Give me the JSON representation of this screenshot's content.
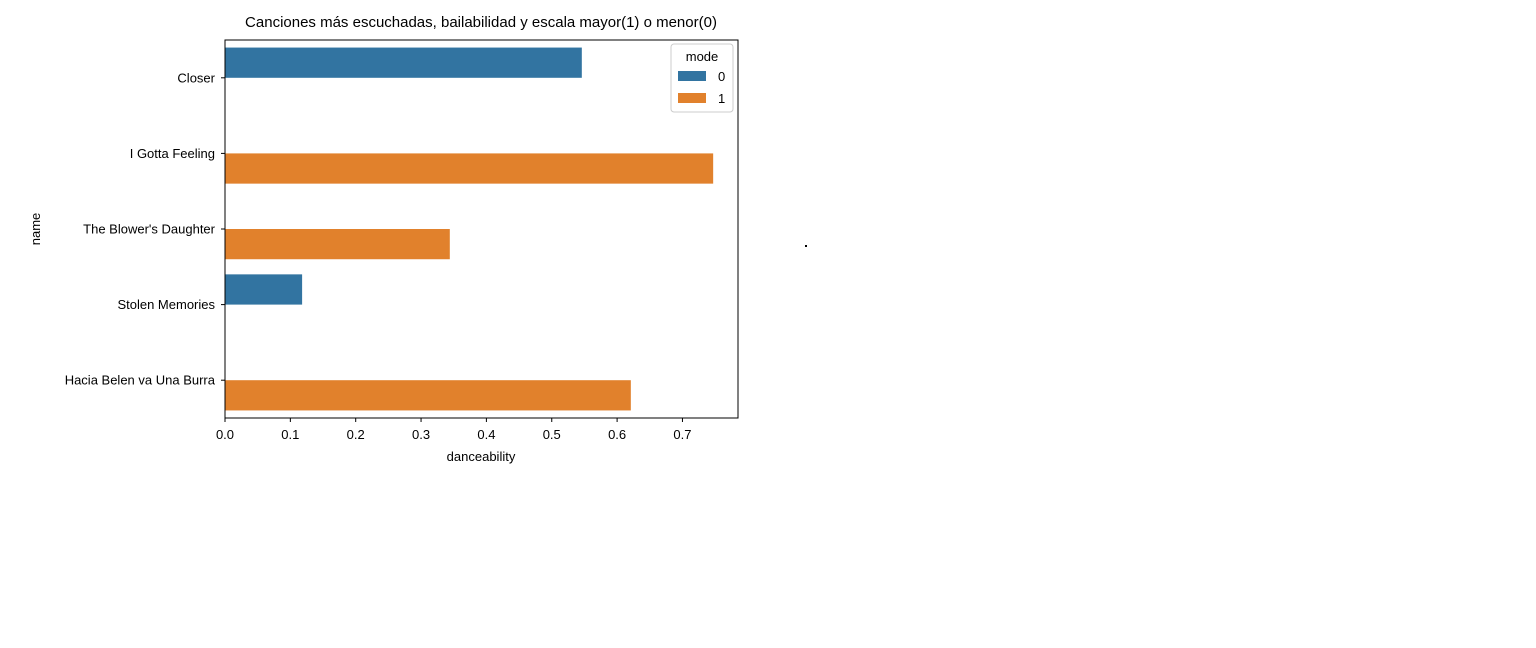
{
  "chart_data": {
    "type": "bar",
    "orientation": "horizontal",
    "title": "Canciones más escuchadas, bailabilidad y escala mayor(1) o menor(0)",
    "xlabel": "danceability",
    "ylabel": "name",
    "categories": [
      "Closer",
      "I Gotta Feeling",
      "The Blower's Daughter",
      "Stolen Memories",
      "Hacia Belen va Una Burra"
    ],
    "xlim": [
      0.0,
      0.785
    ],
    "xticks": [
      "0.0",
      "0.1",
      "0.2",
      "0.3",
      "0.4",
      "0.5",
      "0.6",
      "0.7"
    ],
    "grid": false,
    "legend": {
      "title": "mode",
      "placement": "top-right"
    },
    "series": [
      {
        "name": "0",
        "color": "#1f77b4",
        "values": [
          0.546,
          null,
          null,
          0.118,
          null
        ]
      },
      {
        "name": "1",
        "color": "#ff7f0e",
        "values": [
          null,
          0.747,
          0.344,
          null,
          0.621
        ]
      }
    ]
  },
  "colors": {
    "mode0": "#3274a1",
    "mode1": "#e1812c"
  }
}
